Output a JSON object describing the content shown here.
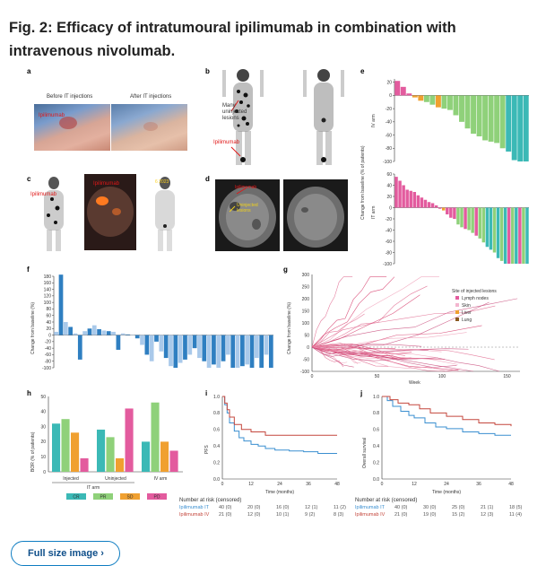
{
  "header": {
    "title": "Fig. 2: Efficacy of intratumoural ipilimumab in combination with intravenous nivolumab."
  },
  "panels": {
    "a": {
      "letter": "a",
      "before": "Before IT injections",
      "after": "After IT injections",
      "label": "Ipilimumab"
    },
    "b": {
      "letter": "b",
      "label1": "Many uninjected lesions",
      "label2": "Ipilimumab"
    },
    "c": {
      "letter": "c",
      "label1": "Ipilimumab",
      "label2": "Ipilimumab",
      "date": "6 2023"
    },
    "d": {
      "letter": "d",
      "label1": "Ipilimumab",
      "label2": "Uninjected lesions"
    },
    "e": {
      "letter": "e",
      "ylabel": "Change from baseline (% of patients)",
      "arm_top": "IV arm",
      "arm_bottom": "IT arm"
    },
    "f": {
      "letter": "f",
      "ylabel": "Change from baseline (%)"
    },
    "g": {
      "letter": "g",
      "ylabel": "Change from baseline (%)",
      "xlabel": "Week",
      "legend_title": "Site of injected lesions",
      "legend": [
        "Lymph nodes",
        "Skin",
        "Liver",
        "Lung"
      ]
    },
    "h": {
      "letter": "h",
      "ylabel": "BOR (% of patients)",
      "groups": [
        "Injected",
        "Uninjected",
        "IV arm"
      ],
      "bracket": "IT arm",
      "legend": [
        "CR",
        "PR",
        "SD",
        "PD"
      ]
    },
    "i": {
      "letter": "i",
      "ylabel": "PFS",
      "xlabel": "Time (months)"
    },
    "j": {
      "letter": "j",
      "ylabel": "Overall survival",
      "xlabel": "Time (months)"
    },
    "risk": {
      "title": "Number at risk (censored)",
      "rows_i": [
        {
          "name": "Ipilimumab IT",
          "cells": [
            "40 (0)",
            "20 (0)",
            "16 (0)",
            "12 (1)",
            "11 (2)"
          ]
        },
        {
          "name": "Ipilimumab IV",
          "cells": [
            "21 (0)",
            "12 (0)",
            "10 (1)",
            "9 (2)",
            "8 (3)"
          ]
        }
      ],
      "rows_j": [
        {
          "name": "Ipilimumab IT",
          "cells": [
            "40 (0)",
            "30 (0)",
            "25 (0)",
            "21 (1)",
            "18 (5)"
          ]
        },
        {
          "name": "Ipilimumab IV",
          "cells": [
            "21 (0)",
            "19 (0)",
            "15 (2)",
            "12 (3)",
            "11 (4)"
          ]
        }
      ]
    }
  },
  "colors": {
    "teal": "#3bb9b6",
    "green": "#8fd17a",
    "orange": "#f0a030",
    "pink": "#e35b9e",
    "blue": "#2f7fc1",
    "red": "#d24a3a",
    "kmblue": "#3a8fd0",
    "kmred": "#c4473d"
  },
  "chart_data": [
    {
      "panel": "e-top",
      "type": "bar",
      "ylim": [
        -100,
        25
      ],
      "values": [
        22,
        13,
        3,
        -3,
        -8,
        -10,
        -14,
        -18,
        -20,
        -22,
        -30,
        -40,
        -50,
        -58,
        -62,
        -68,
        -70,
        -72,
        -80,
        -85,
        -98,
        -100,
        -100
      ],
      "colors": [
        "pink",
        "pink",
        "pink",
        "orange",
        "orange",
        "green",
        "green",
        "orange",
        "green",
        "green",
        "green",
        "green",
        "green",
        "green",
        "green",
        "green",
        "green",
        "green",
        "green",
        "teal",
        "teal",
        "teal",
        "teal"
      ]
    },
    {
      "panel": "e-bottom",
      "type": "bar",
      "ylim": [
        -100,
        60
      ],
      "values": [
        55,
        48,
        40,
        32,
        30,
        28,
        22,
        18,
        14,
        10,
        8,
        4,
        -2,
        -5,
        -12,
        -18,
        -20,
        -30,
        -35,
        -38,
        -40,
        -45,
        -50,
        -55,
        -62,
        -70,
        -75,
        -80,
        -90,
        -95,
        -100,
        -100,
        -100,
        -100,
        -100,
        -100,
        -100
      ],
      "colors": [
        "pink",
        "pink",
        "pink",
        "pink",
        "pink",
        "pink",
        "pink",
        "pink",
        "pink",
        "pink",
        "pink",
        "pink",
        "pink",
        "orange",
        "pink",
        "pink",
        "pink",
        "green",
        "green",
        "pink",
        "green",
        "green",
        "pink",
        "green",
        "green",
        "teal",
        "teal",
        "green",
        "teal",
        "green",
        "teal",
        "pink",
        "green",
        "teal",
        "pink",
        "green",
        "teal"
      ]
    },
    {
      "panel": "f",
      "type": "bar",
      "ylim": [
        -100,
        180
      ],
      "values": [
        10,
        185,
        40,
        25,
        5,
        -75,
        12,
        20,
        30,
        18,
        14,
        12,
        10,
        -45,
        5,
        2,
        0,
        -10,
        -30,
        -60,
        -80,
        -20,
        -50,
        -70,
        -95,
        -100,
        -85,
        -75,
        -60,
        -40,
        -70,
        -80,
        -100,
        -90,
        -100,
        -80,
        -60,
        -100,
        -100,
        -95,
        -90,
        -100,
        -70,
        -100,
        -60,
        -100
      ],
      "colors": [
        "light",
        "dark",
        "light",
        "dark",
        "light",
        "dark",
        "light",
        "dark",
        "light",
        "dark",
        "light",
        "dark",
        "light",
        "dark",
        "light",
        "dark",
        "light",
        "dark",
        "light",
        "dark",
        "light",
        "dark",
        "light",
        "dark",
        "light",
        "dark",
        "light",
        "dark",
        "light",
        "dark",
        "light",
        "dark",
        "light",
        "dark",
        "light",
        "dark",
        "light",
        "dark",
        "light",
        "dark",
        "light",
        "dark",
        "light",
        "dark",
        "light",
        "dark"
      ]
    },
    {
      "panel": "h",
      "type": "bar",
      "categories": [
        "Injected",
        "Uninjected",
        "IV arm"
      ],
      "ylabel": "BOR (% of patients)",
      "ylim": [
        0,
        50
      ],
      "series": [
        {
          "name": "CR",
          "values": [
            32,
            28,
            20
          ]
        },
        {
          "name": "PR",
          "values": [
            35,
            23,
            46
          ]
        },
        {
          "name": "SD",
          "values": [
            26,
            9,
            20
          ]
        },
        {
          "name": "PD",
          "values": [
            9,
            42,
            14
          ]
        }
      ]
    },
    {
      "panel": "i",
      "type": "line",
      "xlabel": "Time (months)",
      "ylabel": "PFS",
      "xlim": [
        0,
        48
      ],
      "ylim": [
        0,
        1
      ],
      "x_ticks": [
        0,
        12,
        24,
        36,
        48
      ],
      "series": [
        {
          "name": "Ipilimumab IT",
          "x": [
            0,
            1,
            2,
            3,
            5,
            7,
            9,
            12,
            15,
            18,
            22,
            28,
            34,
            40,
            48
          ],
          "y": [
            1,
            0.9,
            0.8,
            0.68,
            0.58,
            0.5,
            0.46,
            0.42,
            0.4,
            0.37,
            0.35,
            0.34,
            0.33,
            0.31,
            0.31
          ]
        },
        {
          "name": "Ipilimumab IV",
          "x": [
            0,
            1,
            2,
            3,
            5,
            8,
            12,
            18,
            24,
            36,
            48
          ],
          "y": [
            1,
            0.92,
            0.84,
            0.75,
            0.66,
            0.6,
            0.57,
            0.53,
            0.53,
            0.53,
            0.53
          ]
        }
      ]
    },
    {
      "panel": "j",
      "type": "line",
      "xlabel": "Time (months)",
      "ylabel": "Overall survival",
      "xlim": [
        0,
        48
      ],
      "ylim": [
        0,
        1
      ],
      "x_ticks": [
        0,
        12,
        24,
        36,
        48
      ],
      "series": [
        {
          "name": "Ipilimumab IT",
          "x": [
            0,
            2,
            4,
            7,
            10,
            12,
            16,
            20,
            24,
            30,
            36,
            42,
            48
          ],
          "y": [
            1,
            0.95,
            0.88,
            0.82,
            0.77,
            0.74,
            0.68,
            0.63,
            0.61,
            0.57,
            0.55,
            0.53,
            0.53
          ]
        },
        {
          "name": "Ipilimumab IV",
          "x": [
            0,
            3,
            6,
            10,
            14,
            18,
            24,
            30,
            36,
            42,
            48
          ],
          "y": [
            1,
            0.96,
            0.92,
            0.9,
            0.85,
            0.8,
            0.76,
            0.72,
            0.68,
            0.66,
            0.64
          ]
        }
      ]
    }
  ],
  "footer": {
    "link": "Full size image ›"
  }
}
